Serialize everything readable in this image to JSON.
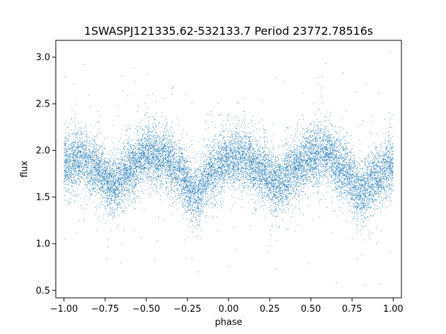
{
  "chart_data": {
    "type": "scatter",
    "title": "1SWASPJ121335.62-532133.7 Period 23772.78516s",
    "xlabel": "phase",
    "ylabel": "flux",
    "xlim": [
      -1.05,
      1.05
    ],
    "ylim": [
      0.42,
      3.18
    ],
    "xticks": [
      -1.0,
      -0.75,
      -0.5,
      -0.25,
      0.0,
      0.25,
      0.5,
      0.75,
      1.0
    ],
    "xtick_labels": [
      "−1.00",
      "−0.75",
      "−0.50",
      "−0.25",
      "0.00",
      "0.25",
      "0.50",
      "0.75",
      "1.00"
    ],
    "yticks": [
      0.5,
      1.0,
      1.5,
      2.0,
      2.5,
      3.0
    ],
    "ytick_labels": [
      "0.5",
      "1.0",
      "1.5",
      "2.0",
      "2.5",
      "3.0"
    ],
    "grid": false,
    "legend": "none",
    "color": "#1f77b4",
    "series": [
      {
        "x_range": [
          -1.0,
          1.0
        ],
        "point_count": 14000,
        "trend": {
          "phase": [
            -1.0,
            -0.9,
            -0.8,
            -0.7,
            -0.6,
            -0.5,
            -0.4,
            -0.3,
            -0.2,
            -0.1,
            0.0,
            0.1,
            0.2,
            0.3,
            0.4,
            0.5,
            0.6,
            0.7,
            0.8,
            0.9,
            1.0
          ],
          "flux": [
            1.85,
            1.92,
            1.8,
            1.63,
            1.8,
            1.95,
            1.93,
            1.78,
            1.52,
            1.78,
            1.9,
            1.92,
            1.78,
            1.63,
            1.8,
            1.93,
            1.97,
            1.8,
            1.55,
            1.7,
            1.85
          ]
        },
        "scatter_sd": 0.16
      }
    ]
  }
}
